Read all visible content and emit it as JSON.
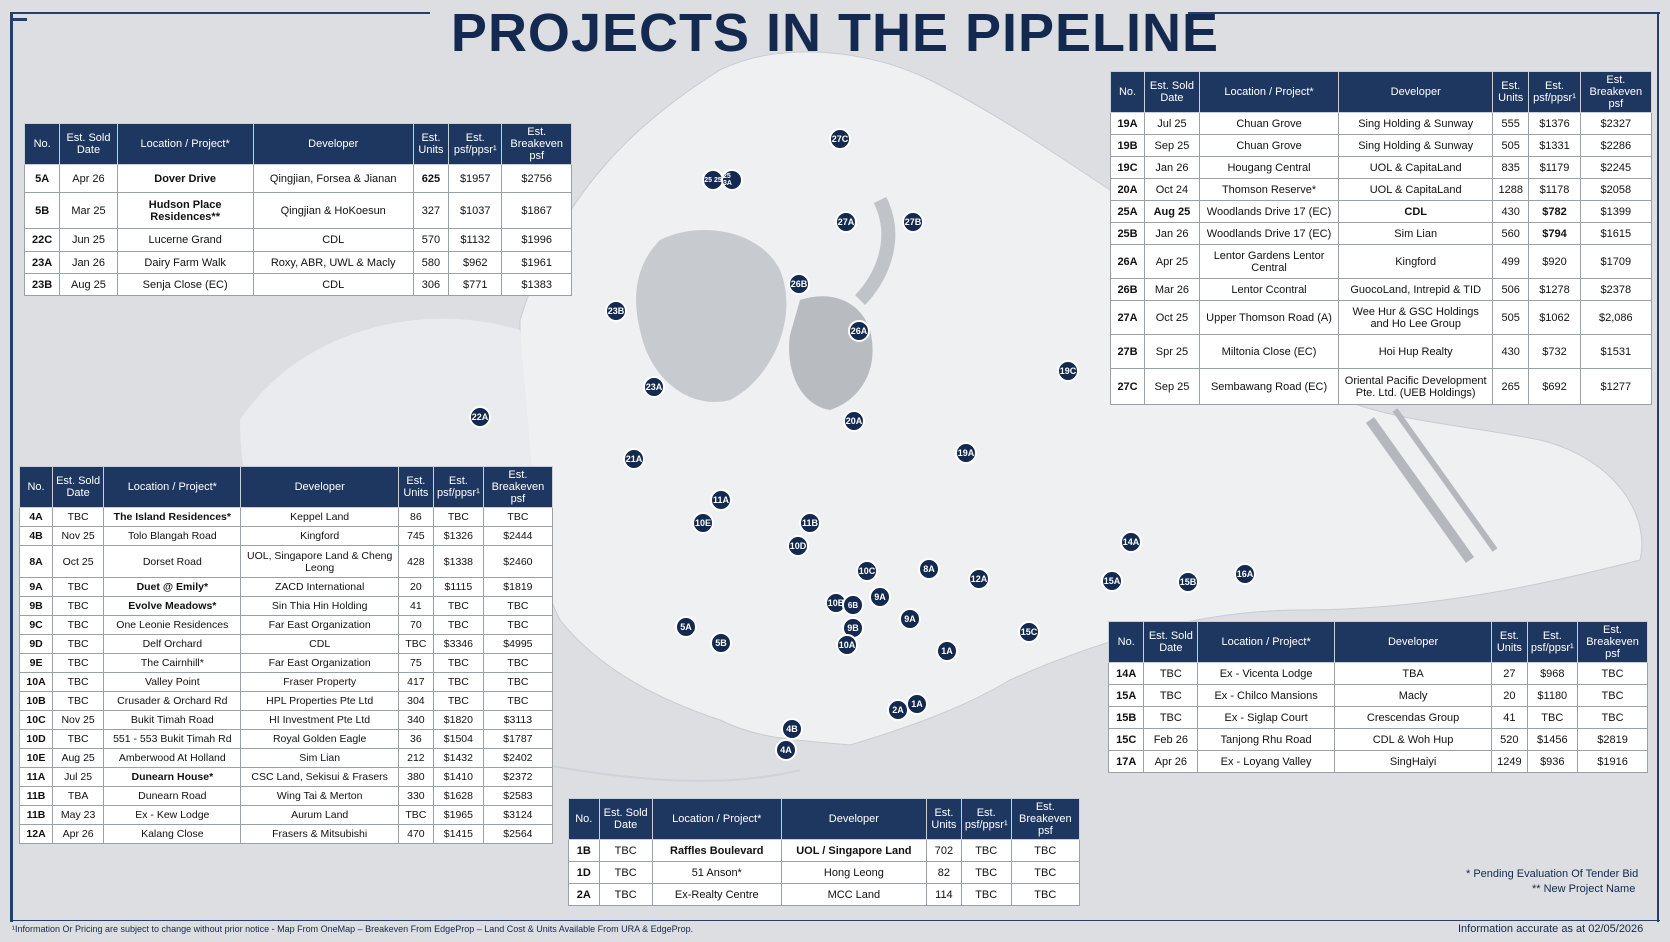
{
  "title": "PROJECTS IN THE PIPELINE",
  "headers": [
    "No.",
    "Est. Sold Date",
    "Location / Project*",
    "Developer",
    "Est. Units",
    "Est. psf/ppsr¹",
    "Est. Breakeven psf"
  ],
  "t1": [
    [
      "5A",
      "Apr 26",
      "Dover Drive",
      "Qingjian, Forsea & Jianan",
      "625",
      "$1957",
      "$2756"
    ],
    [
      "5B",
      "Mar 25",
      "Hudson Place Residences**",
      "Qingjian & HoKoesun",
      "327",
      "$1037",
      "$1867"
    ],
    [
      "22C",
      "Jun 25",
      "Lucerne Grand",
      "CDL",
      "570",
      "$1132",
      "$1996"
    ],
    [
      "23A",
      "Jan 26",
      "Dairy Farm Walk",
      "Roxy, ABR, UWL & Macly",
      "580",
      "$962",
      "$1961"
    ],
    [
      "23B",
      "Aug 25",
      "Senja Close (EC)",
      "CDL",
      "306",
      "$771",
      "$1383"
    ]
  ],
  "t2": [
    [
      "19A",
      "Jul 25",
      "Chuan Grove",
      "Sing Holding & Sunway",
      "555",
      "$1376",
      "$2327"
    ],
    [
      "19B",
      "Sep 25",
      "Chuan Grove",
      "Sing Holding & Sunway",
      "505",
      "$1331",
      "$2286"
    ],
    [
      "19C",
      "Jan 26",
      "Hougang Central",
      "UOL & CapitaLand",
      "835",
      "$1179",
      "$2245"
    ],
    [
      "20A",
      "Oct 24",
      "Thomson Reserve*",
      "UOL & CapitaLand",
      "1288",
      "$1178",
      "$2058"
    ],
    [
      "25A",
      "Aug 25",
      "Woodlands Drive 17 (EC)",
      "CDL",
      "430",
      "$782",
      "$1399"
    ],
    [
      "25B",
      "Jan 26",
      "Woodlands Drive 17 (EC)",
      "Sim Lian",
      "560",
      "$794",
      "$1615"
    ],
    [
      "26A",
      "Apr 25",
      "Lentor Gardens Lentor Central",
      "Kingford",
      "499",
      "$920",
      "$1709"
    ],
    [
      "26B",
      "Mar 26",
      "Lentor Ccontral",
      "GuocoLand, Intrepid & TID",
      "506",
      "$1278",
      "$2378"
    ],
    [
      "27A",
      "Oct 25",
      "Upper Thomson Road (A)",
      "Wee Hur & GSC Holdings and Ho Lee Group",
      "505",
      "$1062",
      "$2,086"
    ],
    [
      "27B",
      "Spr 25",
      "Miltonia Close (EC)",
      "Hoi Hup Realty",
      "430",
      "$732",
      "$1531"
    ],
    [
      "27C",
      "Sep 25",
      "Sembawang Road (EC)",
      "Oriental Pacific Development Pte. Ltd. (UEB Holdings)",
      "265",
      "$692",
      "$1277"
    ]
  ],
  "t3": [
    [
      "4A",
      "TBC",
      "The Island Residences*",
      "Keppel Land",
      "86",
      "TBC",
      "TBC"
    ],
    [
      "4B",
      "Nov 25",
      "Tolo Blangah Road",
      "Kingford",
      "745",
      "$1326",
      "$2444"
    ],
    [
      "8A",
      "Oct 25",
      "Dorset Road",
      "UOL, Singapore Land & Cheng Leong",
      "428",
      "$1338",
      "$2460"
    ],
    [
      "9A",
      "TBC",
      "Duet @ Emily*",
      "ZACD International",
      "20",
      "$1115",
      "$1819"
    ],
    [
      "9B",
      "TBC",
      "Evolve Meadows*",
      "Sin Thia Hin Holding",
      "41",
      "TBC",
      "TBC"
    ],
    [
      "9C",
      "TBC",
      "One Leonie Residences",
      "Far East Organization",
      "70",
      "TBC",
      "TBC"
    ],
    [
      "9D",
      "TBC",
      "Delf Orchard",
      "CDL",
      "TBC",
      "$3346",
      "$4995"
    ],
    [
      "9E",
      "TBC",
      "The Cairnhill*",
      "Far East Organization",
      "75",
      "TBC",
      "TBC"
    ],
    [
      "10A",
      "TBC",
      "Valley Point",
      "Fraser Property",
      "417",
      "TBC",
      "TBC"
    ],
    [
      "10B",
      "TBC",
      "Crusader & Orchard Rd",
      "HPL Properties Pte Ltd",
      "304",
      "TBC",
      "TBC"
    ],
    [
      "10C",
      "Nov 25",
      "Bukit Timah Road",
      "HI Investment Pte Ltd",
      "340",
      "$1820",
      "$3113"
    ],
    [
      "10D",
      "TBC",
      "551 - 553 Bukit Timah Rd",
      "Royal Golden Eagle",
      "36",
      "$1504",
      "$1787"
    ],
    [
      "10E",
      "Aug 25",
      "Amberwood At Holland",
      "Sim Lian",
      "212",
      "$1432",
      "$2402"
    ],
    [
      "11A",
      "Jul 25",
      "Dunearn House*",
      "CSC Land, Sekisui & Frasers",
      "380",
      "$1410",
      "$2372"
    ],
    [
      "11B",
      "TBA",
      "Dunearn Road",
      "Wing Tai & Merton",
      "330",
      "$1628",
      "$2583"
    ],
    [
      "11B",
      "May 23",
      "Ex - Kew Lodge",
      "Aurum Land",
      "TBC",
      "$1965",
      "$3124"
    ],
    [
      "12A",
      "Apr 26",
      "Kalang Close",
      "Frasers & Mitsubishi",
      "470",
      "$1415",
      "$2564"
    ]
  ],
  "t4": [
    [
      "1B",
      "TBC",
      "Raffles Boulevard",
      "UOL / Singapore Land",
      "702",
      "TBC",
      "TBC"
    ],
    [
      "1D",
      "TBC",
      "51 Anson*",
      "Hong Leong",
      "82",
      "TBC",
      "TBC"
    ],
    [
      "2A",
      "TBC",
      "Ex-Realty Centre",
      "MCC Land",
      "114",
      "TBC",
      "TBC"
    ]
  ],
  "t5": [
    [
      "14A",
      "TBC",
      "Ex - Vicenta Lodge",
      "TBA",
      "27",
      "$968",
      "TBC"
    ],
    [
      "15A",
      "TBC",
      "Ex - Chilco Mansions",
      "Macly",
      "20",
      "$1180",
      "TBC"
    ],
    [
      "15B",
      "TBC",
      "Ex - Siglap Court",
      "Crescendas Group",
      "41",
      "TBC",
      "TBC"
    ],
    [
      "15C",
      "Feb 26",
      "Tanjong Rhu Road",
      "CDL & Woh Hup",
      "520",
      "$1456",
      "$2819"
    ],
    [
      "17A",
      "Apr 26",
      "Ex - Loyang Valley",
      "SingHaiyi",
      "1249",
      "$936",
      "$1916"
    ]
  ],
  "pins": [
    "27C",
    "25 25",
    "25 3A",
    "27A",
    "27B",
    "26B",
    "23B",
    "26A",
    "19C",
    "23A",
    "22A",
    "20A",
    "19A",
    "21A",
    "11A",
    "10E",
    "11B",
    "10D",
    "10C",
    "8A",
    "12A",
    "14A",
    "15A",
    "15B",
    "16A",
    "10B",
    "6B",
    "9A",
    "9A",
    "9B",
    "10A",
    "5A",
    "5B",
    "15C",
    "1A",
    "2A",
    "1A",
    "4B",
    "4A"
  ],
  "notes": {
    "pending": "* Pending Evaluation Of Tender Bid",
    "new": "** New Project Name"
  },
  "footer": {
    "left": "¹Information Or Pricing are subject to change without prior notice - Map From OneMap – Breakeven From EdgeProp – Land Cost & Units Available From URA & EdgeProp.",
    "right": "Information accurate as at 02/05/2026"
  }
}
